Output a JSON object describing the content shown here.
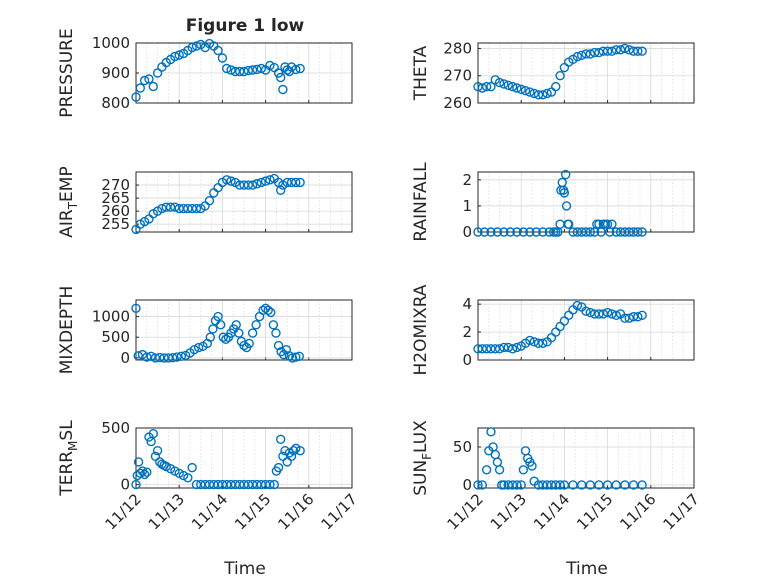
{
  "figure": {
    "title": "Figure 1 low",
    "xlabel_left": "Time",
    "xlabel_right": "Time"
  },
  "colors": {
    "marker": "#0072BD",
    "axis": "#262626"
  },
  "chart_data": [
    {
      "type": "scatter",
      "ylabel": "PRESSURE",
      "xlim": [
        "11/12",
        "11/17"
      ],
      "ylim": [
        800,
        1000
      ],
      "yticks": [
        "800",
        "900",
        "1000"
      ],
      "xticks": [
        "11/12",
        "11/13",
        "11/14",
        "11/15",
        "11/16",
        "11/17"
      ],
      "grid": true,
      "x_day": [
        12.0,
        12.1,
        12.2,
        12.3,
        12.4,
        12.5,
        12.6,
        12.7,
        12.8,
        12.9,
        13.0,
        13.1,
        13.2,
        13.3,
        13.4,
        13.5,
        13.6,
        13.7,
        13.8,
        13.9,
        14.0,
        14.1,
        14.2,
        14.3,
        14.4,
        14.5,
        14.6,
        14.7,
        14.8,
        14.9,
        15.0,
        15.1,
        15.2,
        15.3,
        15.35,
        15.4,
        15.45,
        15.5,
        15.55,
        15.6,
        15.7,
        15.8
      ],
      "y": [
        820,
        850,
        875,
        880,
        855,
        900,
        920,
        935,
        945,
        955,
        960,
        965,
        975,
        985,
        990,
        995,
        985,
        998,
        990,
        975,
        950,
        915,
        910,
        905,
        905,
        905,
        908,
        910,
        912,
        915,
        910,
        925,
        918,
        900,
        885,
        845,
        920,
        910,
        905,
        920,
        912,
        915
      ]
    },
    {
      "type": "scatter",
      "ylabel": "THETA",
      "xlim": [
        "11/12",
        "11/17"
      ],
      "ylim": [
        260,
        282
      ],
      "yticks": [
        "260",
        "270",
        "280"
      ],
      "xticks": [
        "11/12",
        "11/13",
        "11/14",
        "11/15",
        "11/16",
        "11/17"
      ],
      "grid": true,
      "x_day": [
        12.0,
        12.1,
        12.2,
        12.3,
        12.4,
        12.5,
        12.6,
        12.7,
        12.8,
        12.9,
        13.0,
        13.1,
        13.2,
        13.3,
        13.4,
        13.5,
        13.6,
        13.7,
        13.8,
        13.9,
        14.0,
        14.1,
        14.2,
        14.3,
        14.4,
        14.5,
        14.6,
        14.7,
        14.8,
        14.9,
        15.0,
        15.1,
        15.2,
        15.3,
        15.4,
        15.5,
        15.6,
        15.7,
        15.8
      ],
      "y": [
        266,
        265.5,
        266,
        266,
        268.5,
        267.5,
        267,
        266.5,
        266,
        265.5,
        265,
        264.5,
        264,
        263.5,
        263,
        263,
        263.5,
        264,
        266,
        270,
        273,
        275,
        276,
        277,
        277.5,
        278,
        278,
        278.5,
        278.5,
        279,
        279,
        279,
        279.5,
        279.5,
        280,
        279.5,
        279,
        279,
        279
      ]
    },
    {
      "type": "scatter",
      "ylabel": "AIR_TEMP",
      "xlim": [
        "11/12",
        "11/17"
      ],
      "ylim": [
        252,
        275
      ],
      "yticks": [
        "255",
        "260",
        "265",
        "270"
      ],
      "xticks": [
        "11/12",
        "11/13",
        "11/14",
        "11/15",
        "11/16",
        "11/17"
      ],
      "grid": true,
      "x_day": [
        12.0,
        12.1,
        12.2,
        12.3,
        12.4,
        12.5,
        12.6,
        12.7,
        12.8,
        12.9,
        13.0,
        13.1,
        13.2,
        13.3,
        13.4,
        13.5,
        13.6,
        13.7,
        13.8,
        13.9,
        14.0,
        14.1,
        14.2,
        14.3,
        14.4,
        14.5,
        14.6,
        14.7,
        14.8,
        14.9,
        15.0,
        15.1,
        15.2,
        15.3,
        15.35,
        15.4,
        15.5,
        15.6,
        15.7,
        15.8
      ],
      "y": [
        253,
        255,
        256,
        257,
        259,
        260,
        261,
        261.5,
        261.5,
        261.5,
        261,
        261,
        261,
        261,
        261,
        261,
        262,
        264,
        267,
        269,
        271,
        272,
        271.5,
        271,
        270,
        270,
        270,
        270,
        270.5,
        271,
        271.5,
        272,
        272.5,
        271,
        268,
        270,
        271,
        271,
        271,
        271
      ]
    },
    {
      "type": "scatter",
      "ylabel": "RAINFALL",
      "xlim": [
        "11/12",
        "11/17"
      ],
      "ylim": [
        0,
        2.3
      ],
      "yticks": [
        "0",
        "1",
        "2"
      ],
      "xticks": [
        "11/12",
        "11/13",
        "11/14",
        "11/15",
        "11/16",
        "11/17"
      ],
      "grid": true,
      "x_day": [
        12.0,
        12.15,
        12.3,
        12.45,
        12.6,
        12.75,
        12.9,
        13.05,
        13.2,
        13.35,
        13.5,
        13.65,
        13.75,
        13.8,
        13.85,
        13.9,
        13.92,
        13.95,
        13.98,
        14.0,
        14.03,
        14.05,
        14.08,
        14.1,
        14.2,
        14.3,
        14.4,
        14.5,
        14.6,
        14.7,
        14.75,
        14.8,
        14.85,
        14.9,
        14.95,
        15.0,
        15.05,
        15.1,
        15.2,
        15.3,
        15.4,
        15.5,
        15.6,
        15.7,
        15.8
      ],
      "y": [
        0,
        0,
        0,
        0,
        0,
        0,
        0,
        0,
        0,
        0,
        0,
        0,
        0,
        0,
        0,
        0.3,
        1.6,
        1.9,
        1.6,
        1.5,
        2.2,
        1.0,
        0.3,
        0.3,
        0,
        0,
        0,
        0,
        0,
        0,
        0.3,
        0.3,
        0,
        0.3,
        0.3,
        0.3,
        0,
        0.3,
        0,
        0,
        0,
        0,
        0,
        0,
        0
      ]
    },
    {
      "type": "scatter",
      "ylabel": "MIXDEPTH",
      "xlim": [
        "11/12",
        "11/17"
      ],
      "ylim": [
        -50,
        1400
      ],
      "yticks": [
        "0",
        "500",
        "1000"
      ],
      "xticks": [
        "11/12",
        "11/13",
        "11/14",
        "11/15",
        "11/16",
        "11/17"
      ],
      "grid": true,
      "x_day": [
        12.0,
        12.05,
        12.15,
        12.25,
        12.35,
        12.45,
        12.55,
        12.65,
        12.75,
        12.85,
        12.95,
        13.05,
        13.15,
        13.25,
        13.35,
        13.45,
        13.55,
        13.65,
        13.72,
        13.78,
        13.84,
        13.9,
        13.96,
        14.02,
        14.08,
        14.14,
        14.2,
        14.26,
        14.32,
        14.38,
        14.44,
        14.5,
        14.56,
        14.62,
        14.7,
        14.78,
        14.86,
        14.94,
        15.0,
        15.06,
        15.12,
        15.18,
        15.24,
        15.3,
        15.36,
        15.42,
        15.48,
        15.55,
        15.62,
        15.7,
        15.78
      ],
      "y": [
        1200,
        50,
        80,
        20,
        40,
        0,
        10,
        0,
        0,
        5,
        20,
        40,
        60,
        120,
        200,
        250,
        280,
        350,
        500,
        700,
        900,
        1000,
        800,
        500,
        450,
        500,
        600,
        700,
        800,
        600,
        400,
        300,
        250,
        350,
        600,
        800,
        1000,
        1150,
        1200,
        1150,
        1100,
        800,
        600,
        300,
        150,
        80,
        200,
        50,
        0,
        20,
        40
      ]
    },
    {
      "type": "scatter",
      "ylabel": "H2OMIXRA",
      "xlim": [
        "11/12",
        "11/17"
      ],
      "ylim": [
        0,
        4.3
      ],
      "yticks": [
        "0",
        "2",
        "4"
      ],
      "xticks": [
        "11/12",
        "11/13",
        "11/14",
        "11/15",
        "11/16",
        "11/17"
      ],
      "grid": true,
      "x_day": [
        12.0,
        12.1,
        12.2,
        12.3,
        12.4,
        12.5,
        12.6,
        12.7,
        12.8,
        12.9,
        13.0,
        13.1,
        13.2,
        13.3,
        13.4,
        13.5,
        13.6,
        13.7,
        13.8,
        13.9,
        14.0,
        14.1,
        14.2,
        14.3,
        14.4,
        14.5,
        14.6,
        14.7,
        14.8,
        14.9,
        15.0,
        15.1,
        15.2,
        15.3,
        15.4,
        15.5,
        15.6,
        15.7,
        15.8
      ],
      "y": [
        0.8,
        0.8,
        0.8,
        0.8,
        0.8,
        0.8,
        0.9,
        0.9,
        0.8,
        0.9,
        1.0,
        1.2,
        1.4,
        1.3,
        1.2,
        1.2,
        1.3,
        1.6,
        2.0,
        2.4,
        2.8,
        3.2,
        3.6,
        3.9,
        3.8,
        3.5,
        3.4,
        3.3,
        3.3,
        3.3,
        3.4,
        3.3,
        3.2,
        3.3,
        3.0,
        3.0,
        3.1,
        3.1,
        3.2
      ]
    },
    {
      "type": "scatter",
      "ylabel": "TERR_MSL",
      "xlim": [
        "11/12",
        "11/17"
      ],
      "ylim": [
        -30,
        500
      ],
      "yticks": [
        "0",
        "500"
      ],
      "xticks": [
        "11/12",
        "11/13",
        "11/14",
        "11/15",
        "11/16",
        "11/17"
      ],
      "grid": true,
      "x_day": [
        12.0,
        12.03,
        12.06,
        12.1,
        12.15,
        12.2,
        12.25,
        12.3,
        12.35,
        12.4,
        12.45,
        12.5,
        12.55,
        12.6,
        12.65,
        12.7,
        12.8,
        12.9,
        13.0,
        13.1,
        13.2,
        13.3,
        13.4,
        13.5,
        13.6,
        13.7,
        13.8,
        13.9,
        14.0,
        14.1,
        14.2,
        14.3,
        14.4,
        14.5,
        14.6,
        14.7,
        14.8,
        14.9,
        15.0,
        15.1,
        15.2,
        15.25,
        15.3,
        15.35,
        15.4,
        15.45,
        15.5,
        15.55,
        15.6,
        15.65,
        15.7,
        15.8
      ],
      "y": [
        0,
        80,
        200,
        100,
        120,
        90,
        110,
        420,
        380,
        450,
        250,
        300,
        200,
        180,
        170,
        160,
        140,
        120,
        100,
        80,
        60,
        150,
        0,
        0,
        0,
        0,
        0,
        0,
        0,
        0,
        0,
        0,
        0,
        0,
        0,
        0,
        0,
        0,
        0,
        0,
        0,
        120,
        150,
        400,
        250,
        300,
        200,
        280,
        250,
        300,
        320,
        300
      ]
    },
    {
      "type": "scatter",
      "ylabel": "SUN_FLUX",
      "xlim": [
        "11/12",
        "11/17"
      ],
      "ylim": [
        -4,
        75
      ],
      "yticks": [
        "0",
        "50"
      ],
      "xticks": [
        "11/12",
        "11/13",
        "11/14",
        "11/15",
        "11/16",
        "11/17"
      ],
      "grid": true,
      "x_day": [
        12.0,
        12.1,
        12.2,
        12.25,
        12.3,
        12.35,
        12.4,
        12.45,
        12.5,
        12.55,
        12.6,
        12.7,
        12.8,
        12.9,
        13.0,
        13.05,
        13.1,
        13.15,
        13.2,
        13.25,
        13.3,
        13.4,
        13.5,
        13.6,
        13.7,
        13.8,
        13.9,
        14.0,
        14.2,
        14.4,
        14.6,
        14.8,
        15.0,
        15.2,
        15.4,
        15.6,
        15.8
      ],
      "y": [
        0,
        0,
        20,
        45,
        70,
        50,
        40,
        30,
        20,
        0,
        0,
        0,
        0,
        0,
        0,
        20,
        45,
        35,
        30,
        25,
        5,
        0,
        0,
        0,
        0,
        0,
        0,
        0,
        0,
        0,
        0,
        0,
        0,
        0,
        0,
        0,
        0
      ]
    }
  ]
}
